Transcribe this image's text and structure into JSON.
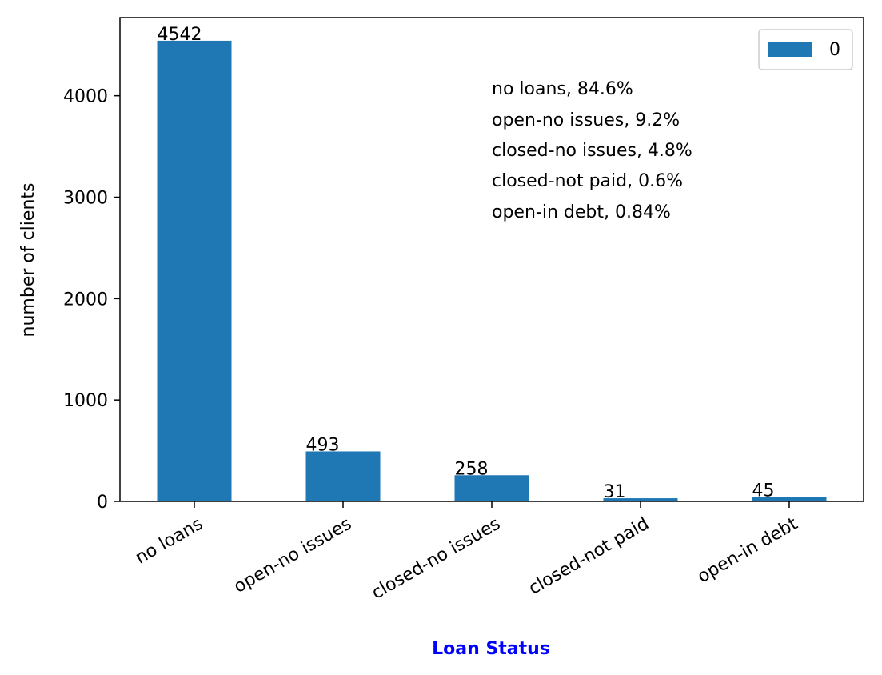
{
  "chart_data": {
    "type": "bar",
    "categories": [
      "no loans",
      "open-no issues",
      "closed-no issues",
      "closed-not paid",
      "open-in debt"
    ],
    "series": [
      {
        "name": "0",
        "values": [
          4542,
          493,
          258,
          31,
          45
        ]
      }
    ],
    "data_labels": [
      "4542",
      "493",
      "258",
      "31",
      "45"
    ],
    "title": "",
    "xlabel": "Loan Status",
    "ylabel": "number of clients",
    "ylim": [
      0,
      4770
    ],
    "yticks": [
      0,
      1000,
      2000,
      3000,
      4000
    ],
    "ytick_labels": [
      "0",
      "1000",
      "2000",
      "3000",
      "4000"
    ],
    "annotations": [
      "no loans, 84.6%",
      "open-no issues, 9.2%",
      "closed-no issues, 4.8%",
      "closed-not paid, 0.6%",
      "open-in debt, 0.84%"
    ],
    "grid": false,
    "legend_position": "upper right",
    "bar_color": "#1f77b4",
    "xlabel_color": "#0000ff"
  }
}
